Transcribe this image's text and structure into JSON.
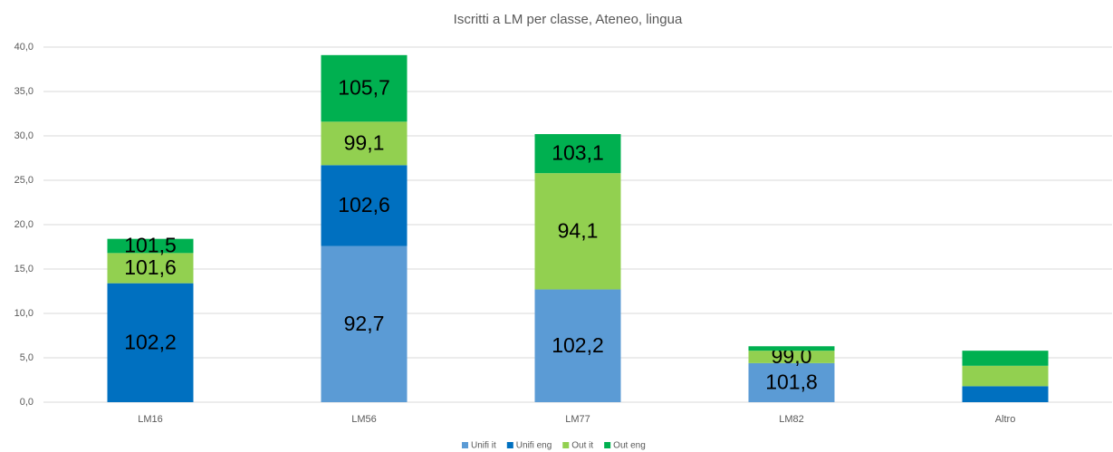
{
  "chart_data": {
    "type": "stacked_bar",
    "title": "Iscritti a LM per classe, Ateneo, lingua",
    "categories": [
      "LM16",
      "LM56",
      "LM77",
      "LM82",
      "Altro"
    ],
    "series": [
      {
        "name": "Unifi it",
        "color": "#5b9bd5",
        "values": [
          0,
          17.6,
          12.7,
          4.4,
          0
        ],
        "segment_labels": [
          null,
          "92,7",
          "102,2",
          "101,8",
          null
        ]
      },
      {
        "name": "Unifi eng",
        "color": "#0070c0",
        "values": [
          13.4,
          9.1,
          0,
          0,
          1.8
        ],
        "segment_labels": [
          "102,2",
          "102,6",
          null,
          null,
          null
        ]
      },
      {
        "name": "Out it",
        "color": "#92d050",
        "values": [
          3.4,
          4.9,
          13.1,
          1.4,
          2.3
        ],
        "segment_labels": [
          "101,6",
          "99,1",
          "94,1",
          "99,0",
          null
        ]
      },
      {
        "name": "Out eng",
        "color": "#00b050",
        "values": [
          1.6,
          7.5,
          4.4,
          0.5,
          1.7
        ],
        "segment_labels": [
          "101,5",
          "105,7",
          "103,1",
          null,
          null
        ]
      }
    ],
    "ylim": [
      0,
      40
    ],
    "yticks": [
      {
        "value": 0,
        "label": "0,0"
      },
      {
        "value": 5,
        "label": "5,0"
      },
      {
        "value": 10,
        "label": "10,0"
      },
      {
        "value": 15,
        "label": "15,0"
      },
      {
        "value": 20,
        "label": "20,0"
      },
      {
        "value": 25,
        "label": "25,0"
      },
      {
        "value": 30,
        "label": "30,0"
      },
      {
        "value": 35,
        "label": "35,0"
      },
      {
        "value": 40,
        "label": "40,0"
      }
    ],
    "grid": true,
    "legend": "bottom"
  }
}
